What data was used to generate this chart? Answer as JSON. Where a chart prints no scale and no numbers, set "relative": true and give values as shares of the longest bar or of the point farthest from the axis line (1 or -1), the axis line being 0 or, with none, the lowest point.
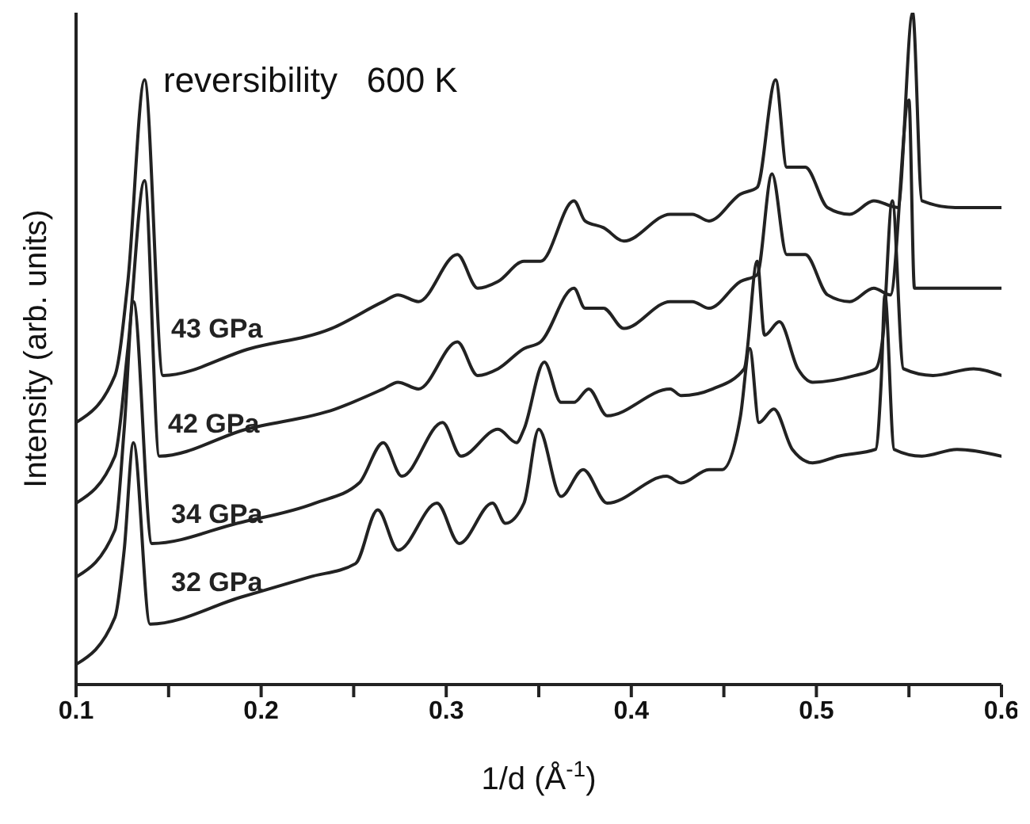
{
  "chart_data": {
    "type": "line",
    "relative": true,
    "xlabel": "1/d (Å$^{-1}$)",
    "ylabel": "Intensity (arb. units)",
    "annotations": [
      "reversibility   600 K"
    ],
    "xlim": [
      0.1,
      0.6
    ],
    "xticks": [
      0.1,
      {
        "value": 0.15,
        "label": null
      },
      0.2,
      {
        "value": 0.25,
        "label": null
      },
      0.3,
      {
        "value": 0.35,
        "label": null
      },
      0.4,
      {
        "value": 0.45,
        "label": null
      },
      0.5,
      {
        "value": 0.55,
        "label": null
      },
      0.6
    ],
    "grid": false,
    "legend": false,
    "marker": "none",
    "line_style": "solid",
    "series": [
      {
        "name": "43 GPa",
        "color": "#222222",
        "x": [
          0.1,
          0.121,
          0.128,
          0.137,
          0.147,
          0.194,
          0.238,
          0.266,
          0.274,
          0.285,
          0.306,
          0.317,
          0.328,
          0.342,
          0.351,
          0.369,
          0.375,
          0.385,
          0.396,
          0.421,
          0.433,
          0.442,
          0.459,
          0.468,
          0.478,
          0.484,
          0.494,
          0.506,
          0.518,
          0.531,
          0.544,
          0.552,
          0.557,
          0.575,
          0.6
        ],
        "values": [
          0.39,
          0.46,
          0.6,
          0.9,
          0.46,
          0.5,
          0.53,
          0.57,
          0.58,
          0.57,
          0.64,
          0.59,
          0.6,
          0.63,
          0.63,
          0.72,
          0.69,
          0.68,
          0.66,
          0.7,
          0.7,
          0.69,
          0.73,
          0.74,
          0.9,
          0.77,
          0.77,
          0.71,
          0.7,
          0.72,
          0.71,
          1,
          0.72,
          0.71,
          0.71
        ]
      },
      {
        "name": "42 GPa",
        "color": "#222222",
        "x": [
          0.1,
          0.121,
          0.128,
          0.137,
          0.145,
          0.192,
          0.24,
          0.266,
          0.274,
          0.285,
          0.306,
          0.317,
          0.328,
          0.342,
          0.351,
          0.369,
          0.375,
          0.385,
          0.396,
          0.421,
          0.433,
          0.442,
          0.459,
          0.468,
          0.476,
          0.484,
          0.494,
          0.506,
          0.518,
          0.531,
          0.54,
          0.55,
          0.553,
          0.575,
          0.6
        ],
        "values": [
          0.27,
          0.34,
          0.5,
          0.75,
          0.34,
          0.38,
          0.41,
          0.44,
          0.45,
          0.44,
          0.51,
          0.46,
          0.47,
          0.5,
          0.51,
          0.59,
          0.56,
          0.56,
          0.53,
          0.57,
          0.57,
          0.56,
          0.6,
          0.61,
          0.76,
          0.64,
          0.64,
          0.58,
          0.57,
          0.59,
          0.58,
          0.87,
          0.59,
          0.59,
          0.59
        ]
      },
      {
        "name": "34 GPa",
        "color": "#222222",
        "x": [
          0.1,
          0.121,
          0.126,
          0.131,
          0.141,
          0.187,
          0.229,
          0.253,
          0.266,
          0.276,
          0.298,
          0.308,
          0.328,
          0.338,
          0.342,
          0.353,
          0.362,
          0.369,
          0.377,
          0.387,
          0.421,
          0.427,
          0.444,
          0.461,
          0.468,
          0.472,
          0.48,
          0.49,
          0.498,
          0.521,
          0.532,
          0.536,
          0.541,
          0.547,
          0.563,
          0.585,
          0.6
        ],
        "values": [
          0.16,
          0.23,
          0.38,
          0.57,
          0.21,
          0.24,
          0.27,
          0.3,
          0.36,
          0.31,
          0.39,
          0.34,
          0.38,
          0.36,
          0.38,
          0.48,
          0.42,
          0.42,
          0.44,
          0.4,
          0.44,
          0.43,
          0.44,
          0.47,
          0.63,
          0.52,
          0.54,
          0.47,
          0.45,
          0.46,
          0.47,
          0.52,
          0.72,
          0.47,
          0.46,
          0.47,
          0.46
        ]
      },
      {
        "name": "32 GPa",
        "color": "#222222",
        "x": [
          0.1,
          0.121,
          0.126,
          0.131,
          0.14,
          0.189,
          0.226,
          0.251,
          0.263,
          0.274,
          0.295,
          0.307,
          0.325,
          0.332,
          0.342,
          0.35,
          0.362,
          0.374,
          0.387,
          0.419,
          0.427,
          0.442,
          0.449,
          0.459,
          0.464,
          0.469,
          0.477,
          0.487,
          0.498,
          0.512,
          0.532,
          0.535,
          0.537,
          0.542,
          0.557,
          0.576,
          0.6
        ],
        "values": [
          0.03,
          0.1,
          0.2,
          0.36,
          0.09,
          0.13,
          0.16,
          0.18,
          0.26,
          0.2,
          0.27,
          0.21,
          0.27,
          0.24,
          0.27,
          0.38,
          0.28,
          0.32,
          0.27,
          0.31,
          0.3,
          0.32,
          0.32,
          0.4,
          0.5,
          0.39,
          0.41,
          0.35,
          0.33,
          0.34,
          0.35,
          0.45,
          0.58,
          0.35,
          0.34,
          0.35,
          0.34
        ]
      }
    ]
  }
}
